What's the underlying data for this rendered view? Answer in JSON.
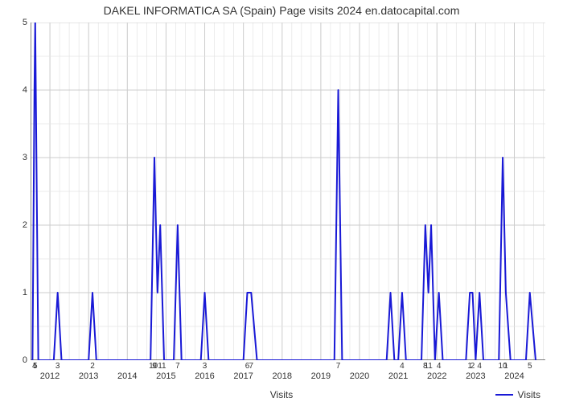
{
  "chart": {
    "type": "line",
    "title": "DAKEL INFORMATICA SA (Spain) Page visits 2024 en.datocapital.com",
    "title_fontsize": 14,
    "xlabel": "Visits",
    "ylabel": "",
    "background_color": "#ffffff",
    "grid_color": "#cccccc",
    "grid_minor_color": "#e4e4e4",
    "axis_color": "#333333",
    "line_color": "#1919d6",
    "line_width": 2,
    "ylim": [
      0,
      5
    ],
    "ytick_step": 1,
    "yticks": [
      0,
      1,
      2,
      3,
      4,
      5
    ],
    "xlim": [
      2011.5,
      2024.8
    ],
    "xticks": [
      2012,
      2013,
      2014,
      2015,
      2016,
      2017,
      2018,
      2019,
      2020,
      2021,
      2022,
      2023,
      2024
    ],
    "subgrid_per_year": 4,
    "legend": {
      "label": "Visits",
      "color": "#1919d6"
    },
    "series": [
      {
        "x": 2011.55,
        "y": 0
      },
      {
        "x": 2011.6,
        "y": 4,
        "label": "4"
      },
      {
        "x": 2011.62,
        "y": 5,
        "label": "5"
      },
      {
        "x": 2011.7,
        "y": 0
      },
      {
        "x": 2012.1,
        "y": 0
      },
      {
        "x": 2012.2,
        "y": 1,
        "label": "3"
      },
      {
        "x": 2012.3,
        "y": 0
      },
      {
        "x": 2013.0,
        "y": 0
      },
      {
        "x": 2013.1,
        "y": 1,
        "label": "2"
      },
      {
        "x": 2013.2,
        "y": 0
      },
      {
        "x": 2014.6,
        "y": 0
      },
      {
        "x": 2014.7,
        "y": 3,
        "label": "9"
      },
      {
        "x": 2014.78,
        "y": 1,
        "label": "1011"
      },
      {
        "x": 2014.85,
        "y": 2
      },
      {
        "x": 2014.95,
        "y": 0
      },
      {
        "x": 2015.2,
        "y": 0
      },
      {
        "x": 2015.3,
        "y": 2,
        "label": "7"
      },
      {
        "x": 2015.4,
        "y": 0
      },
      {
        "x": 2015.9,
        "y": 0
      },
      {
        "x": 2016.0,
        "y": 1,
        "label": "3"
      },
      {
        "x": 2016.1,
        "y": 0
      },
      {
        "x": 2017.0,
        "y": 0
      },
      {
        "x": 2017.1,
        "y": 1,
        "label": "6"
      },
      {
        "x": 2017.2,
        "y": 1,
        "label": "7"
      },
      {
        "x": 2017.35,
        "y": 0
      },
      {
        "x": 2019.35,
        "y": 0
      },
      {
        "x": 2019.45,
        "y": 4,
        "label": "7"
      },
      {
        "x": 2019.55,
        "y": 0
      },
      {
        "x": 2020.7,
        "y": 0
      },
      {
        "x": 2020.8,
        "y": 1
      },
      {
        "x": 2020.9,
        "y": 0
      },
      {
        "x": 2021.0,
        "y": 0
      },
      {
        "x": 2021.1,
        "y": 1,
        "label": "4"
      },
      {
        "x": 2021.2,
        "y": 0
      },
      {
        "x": 2021.6,
        "y": 0
      },
      {
        "x": 2021.7,
        "y": 2,
        "label": "8"
      },
      {
        "x": 2021.78,
        "y": 1,
        "label": "11"
      },
      {
        "x": 2021.85,
        "y": 2
      },
      {
        "x": 2021.95,
        "y": 0
      },
      {
        "x": 2022.05,
        "y": 1,
        "label": "4"
      },
      {
        "x": 2022.15,
        "y": 0
      },
      {
        "x": 2022.75,
        "y": 0
      },
      {
        "x": 2022.85,
        "y": 1,
        "label": "1"
      },
      {
        "x": 2022.92,
        "y": 1,
        "label": "2"
      },
      {
        "x": 2023.0,
        "y": 0
      },
      {
        "x": 2023.1,
        "y": 1,
        "label": "4"
      },
      {
        "x": 2023.2,
        "y": 0
      },
      {
        "x": 2023.6,
        "y": 0
      },
      {
        "x": 2023.7,
        "y": 3,
        "label": "10"
      },
      {
        "x": 2023.78,
        "y": 1,
        "label": "1"
      },
      {
        "x": 2023.9,
        "y": 0
      },
      {
        "x": 2024.3,
        "y": 0
      },
      {
        "x": 2024.4,
        "y": 1,
        "label": "5"
      },
      {
        "x": 2024.55,
        "y": 0
      }
    ]
  }
}
